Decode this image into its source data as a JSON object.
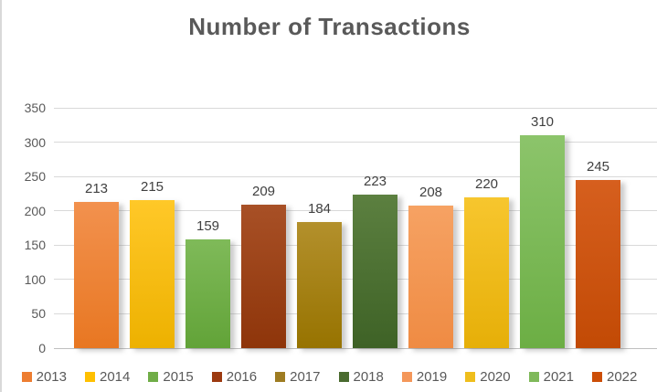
{
  "title": "Number of Transactions",
  "chart_data": {
    "type": "bar",
    "title": "Number of Transactions",
    "categories": [
      "2013",
      "2014",
      "2015",
      "2016",
      "2017",
      "2018",
      "2019",
      "2020",
      "2021",
      "2022"
    ],
    "values": [
      213,
      215,
      159,
      209,
      184,
      223,
      208,
      220,
      310,
      245
    ],
    "xlabel": "",
    "ylabel": "",
    "ylim": [
      0,
      350
    ],
    "yticks": [
      0,
      50,
      100,
      150,
      200,
      250,
      300,
      350
    ],
    "grid": "horizontal",
    "legend_position": "bottom",
    "data_labels": true,
    "series_colors": [
      {
        "category": "2013",
        "top": "#F2914E",
        "bottom": "#E87722",
        "legend": "#ED7D31"
      },
      {
        "category": "2014",
        "top": "#FFC828",
        "bottom": "#EDB100",
        "legend": "#FFC000"
      },
      {
        "category": "2015",
        "top": "#7FBA59",
        "bottom": "#62A338",
        "legend": "#70AD47"
      },
      {
        "category": "2016",
        "top": "#A85026",
        "bottom": "#8E350A",
        "legend": "#9C3A10"
      },
      {
        "category": "2017",
        "top": "#B3902C",
        "bottom": "#977300",
        "legend": "#9E7C22"
      },
      {
        "category": "2018",
        "top": "#5C8040",
        "bottom": "#3E6226",
        "legend": "#4A6B2F"
      },
      {
        "category": "2019",
        "top": "#F6A263",
        "bottom": "#EF8B43",
        "legend": "#F4975A"
      },
      {
        "category": "2020",
        "top": "#F7C62E",
        "bottom": "#E6AF08",
        "legend": "#EFBE1C"
      },
      {
        "category": "2021",
        "top": "#8CC46B",
        "bottom": "#6CAE44",
        "legend": "#7FB95A"
      },
      {
        "category": "2022",
        "top": "#D65F1E",
        "bottom": "#C24A05",
        "legend": "#CC4E07"
      }
    ]
  },
  "colors": {
    "title_text": "#595959",
    "axis_text": "#595959",
    "data_label_text": "#404040",
    "gridline": "#D9D9D9",
    "axis_line": "#BFBFBF",
    "background": "#FFFFFF",
    "chart_border": "#D9D9D9"
  }
}
